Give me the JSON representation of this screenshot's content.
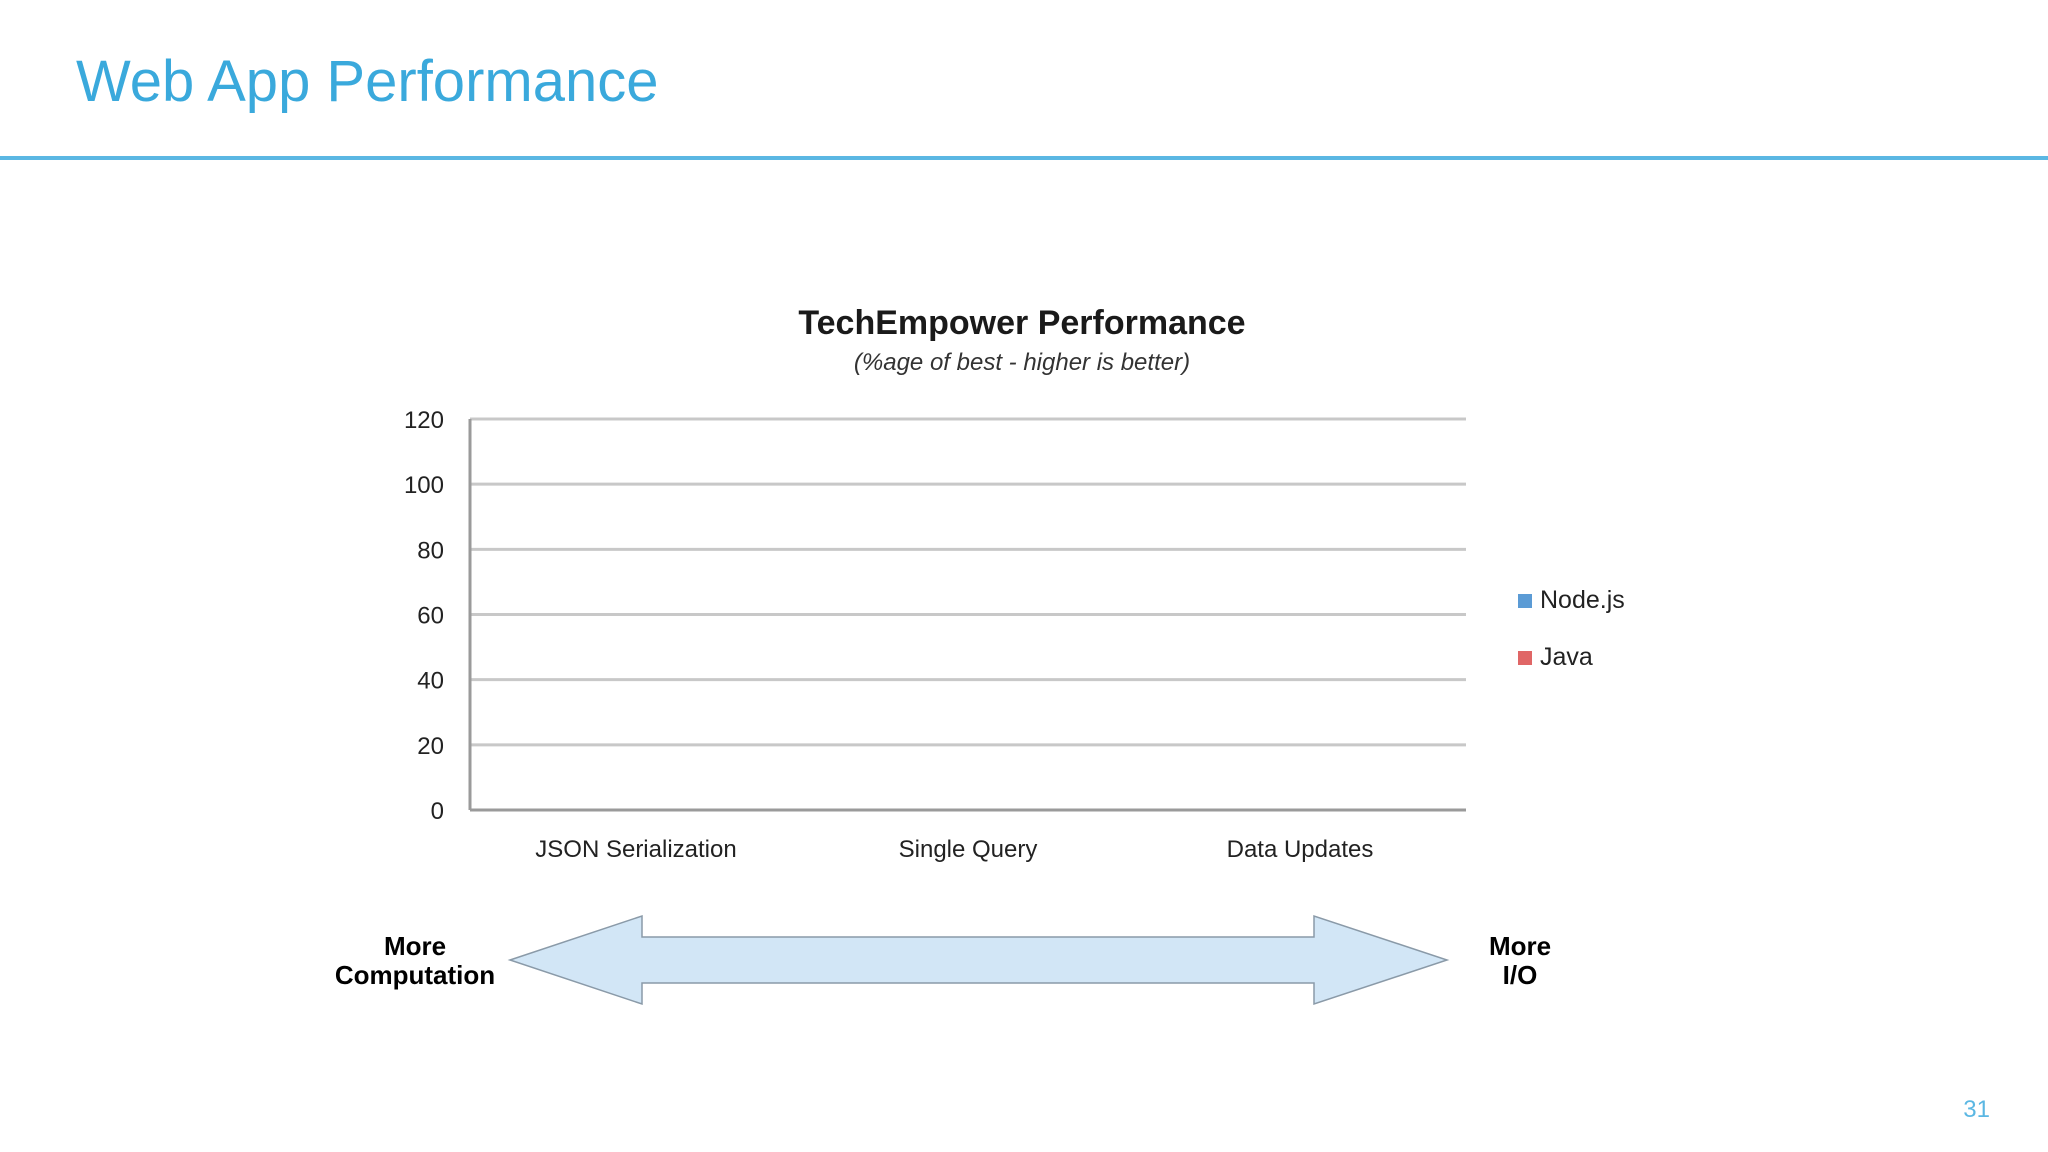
{
  "slide": {
    "title": "Web App Performance",
    "page_number": "31"
  },
  "chart_data": {
    "type": "bar",
    "title": "TechEmpower Performance",
    "subtitle": "(%age of best - higher is better)",
    "categories": [
      "JSON Serialization",
      "Single Query",
      "Data Updates"
    ],
    "series": [
      {
        "name": "Node.js",
        "values": [
          0,
          0,
          0
        ],
        "color": "#5b9bd5"
      },
      {
        "name": "Java",
        "values": [
          0,
          0,
          0
        ],
        "color": "#e06666"
      }
    ],
    "ylim": [
      0,
      120
    ],
    "yticks": [
      0,
      20,
      40,
      60,
      80,
      100,
      120
    ],
    "grid": true,
    "legend_position": "right"
  },
  "arrow": {
    "left_label": [
      "More",
      "Computation"
    ],
    "right_label": [
      "More",
      "I/O"
    ],
    "fill_color": "#d2e6f6",
    "stroke_color": "#8a9aa8"
  }
}
